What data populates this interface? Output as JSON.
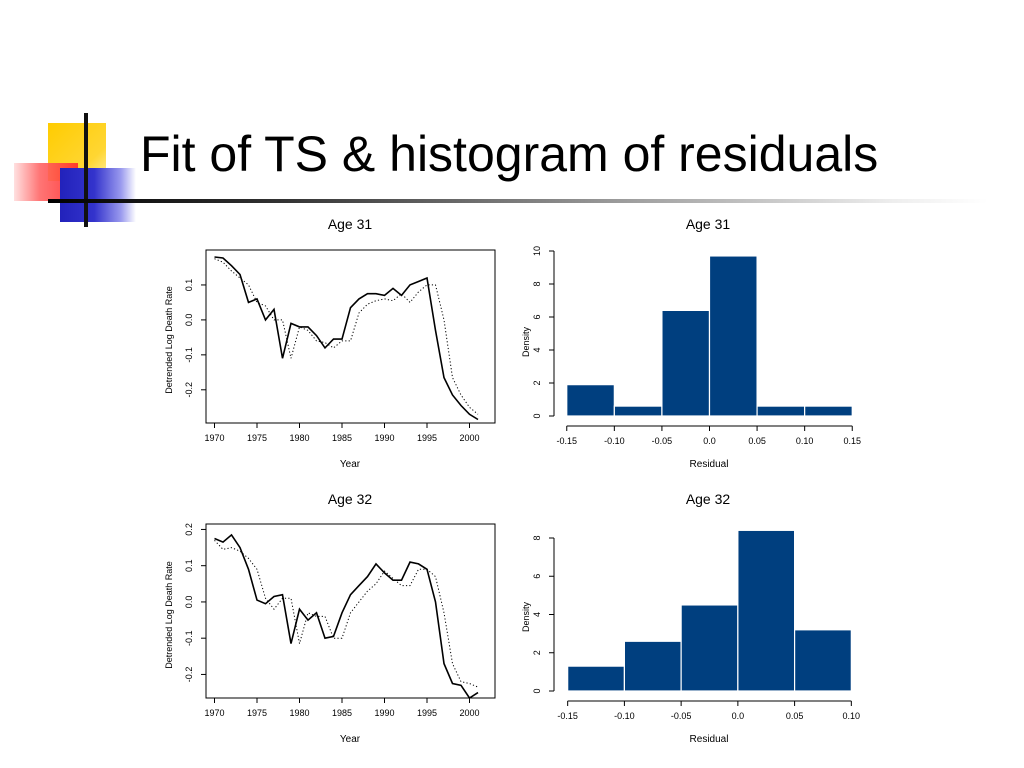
{
  "slide": {
    "title": "Fit of TS & histogram of residuals"
  },
  "colors": {
    "bar_fill": "#003f7f",
    "bar_edge": "#ffffff",
    "deco_yellow": "#ffcc00",
    "deco_red": "#ff3333",
    "deco_blue": "#3333cc"
  },
  "chart_data": [
    {
      "type": "line",
      "title": "Age 31",
      "xlabel": "Year",
      "ylabel": "Detrended Log Death Rate",
      "xlim": [
        1969,
        2003
      ],
      "ylim": [
        -0.295,
        0.2
      ],
      "xticks": [
        1970,
        1975,
        1980,
        1985,
        1990,
        1995,
        2000
      ],
      "xtick_labels": [
        "1970",
        "1975",
        "1980",
        "1985",
        "1990",
        "1995",
        "2000"
      ],
      "yticks": [
        -0.2,
        -0.1,
        0.0,
        0.1
      ],
      "ytick_labels": [
        "-0.2",
        "-0.1",
        "0.0",
        "0.1"
      ],
      "x": [
        1970,
        1971,
        1972,
        1973,
        1974,
        1975,
        1976,
        1977,
        1978,
        1979,
        1980,
        1981,
        1982,
        1983,
        1984,
        1985,
        1986,
        1987,
        1988,
        1989,
        1990,
        1991,
        1992,
        1993,
        1994,
        1995,
        1996,
        1997,
        1998,
        1999,
        2000,
        2001
      ],
      "series": [
        {
          "style": "solid",
          "values": [
            0.18,
            0.177,
            0.155,
            0.13,
            0.05,
            0.06,
            0.0,
            0.03,
            -0.11,
            -0.01,
            -0.02,
            -0.02,
            -0.045,
            -0.08,
            -0.055,
            -0.055,
            0.035,
            0.06,
            0.075,
            0.075,
            0.07,
            0.09,
            0.07,
            0.1,
            0.11,
            0.12,
            -0.03,
            -0.165,
            -0.215,
            -0.245,
            -0.27,
            -0.285
          ]
        },
        {
          "style": "dotted",
          "values": [
            0.175,
            0.165,
            0.14,
            0.12,
            0.1,
            0.05,
            0.04,
            0.0,
            0.0,
            -0.11,
            -0.02,
            -0.03,
            -0.06,
            -0.065,
            -0.08,
            -0.06,
            -0.06,
            0.02,
            0.045,
            0.055,
            0.06,
            0.055,
            0.075,
            0.05,
            0.08,
            0.1,
            0.1,
            0.0,
            -0.165,
            -0.215,
            -0.25,
            -0.27
          ]
        }
      ]
    },
    {
      "type": "bar",
      "title": "Age 31",
      "xlabel": "Residual",
      "ylabel": "Density",
      "xlim": [
        -0.155,
        0.155
      ],
      "ylim": [
        0,
        10
      ],
      "xticks": [
        -0.15,
        -0.1,
        -0.05,
        0.0,
        0.05,
        0.1,
        0.15
      ],
      "xtick_labels": [
        "-0.15",
        "-0.10",
        "-0.05",
        "0.0",
        "0.05",
        "0.10",
        "0.15"
      ],
      "yticks": [
        0,
        2,
        4,
        6,
        8,
        10
      ],
      "ytick_labels": [
        "0",
        "2",
        "4",
        "6",
        "8",
        "10"
      ],
      "bin_edges": [
        -0.15,
        -0.1,
        -0.05,
        0.0,
        0.05,
        0.1,
        0.15
      ],
      "values": [
        1.9,
        0.6,
        6.4,
        9.7,
        0.6,
        0.6
      ]
    },
    {
      "type": "line",
      "title": "Age 32",
      "xlabel": "Year",
      "ylabel": "Detrended Log Death Rate",
      "xlim": [
        1969,
        2003
      ],
      "ylim": [
        -0.265,
        0.215
      ],
      "xticks": [
        1970,
        1975,
        1980,
        1985,
        1990,
        1995,
        2000
      ],
      "xtick_labels": [
        "1970",
        "1975",
        "1980",
        "1985",
        "1990",
        "1995",
        "2000"
      ],
      "yticks": [
        -0.2,
        -0.1,
        0.0,
        0.1,
        0.2
      ],
      "ytick_labels": [
        "-0.2",
        "-0.1",
        "0.0",
        "0.1",
        "0.2"
      ],
      "x": [
        1970,
        1971,
        1972,
        1973,
        1974,
        1975,
        1976,
        1977,
        1978,
        1979,
        1980,
        1981,
        1982,
        1983,
        1984,
        1985,
        1986,
        1987,
        1988,
        1989,
        1990,
        1991,
        1992,
        1993,
        1994,
        1995,
        1996,
        1997,
        1998,
        1999,
        2000,
        2001
      ],
      "series": [
        {
          "style": "solid",
          "values": [
            0.175,
            0.165,
            0.185,
            0.15,
            0.09,
            0.005,
            -0.005,
            0.015,
            0.02,
            -0.115,
            -0.02,
            -0.05,
            -0.03,
            -0.1,
            -0.095,
            -0.03,
            0.02,
            0.045,
            0.07,
            0.105,
            0.08,
            0.06,
            0.06,
            0.11,
            0.105,
            0.09,
            0.0,
            -0.17,
            -0.225,
            -0.23,
            -0.265,
            -0.25
          ]
        },
        {
          "style": "dotted",
          "values": [
            0.17,
            0.145,
            0.15,
            0.14,
            0.12,
            0.09,
            0.01,
            -0.02,
            0.01,
            0.01,
            -0.115,
            -0.03,
            -0.04,
            -0.04,
            -0.1,
            -0.1,
            -0.03,
            0.0,
            0.03,
            0.05,
            0.085,
            0.065,
            0.045,
            0.045,
            0.09,
            0.09,
            0.07,
            -0.03,
            -0.17,
            -0.22,
            -0.225,
            -0.235
          ]
        }
      ]
    },
    {
      "type": "bar",
      "title": "Age 32",
      "xlabel": "Residual",
      "ylabel": "Density",
      "xlim": [
        -0.155,
        0.105
      ],
      "ylim": [
        0,
        8
      ],
      "xticks": [
        -0.15,
        -0.1,
        -0.05,
        0.0,
        0.05,
        0.1
      ],
      "xtick_labels": [
        "-0.15",
        "-0.10",
        "-0.05",
        "0.0",
        "0.05",
        "0.10"
      ],
      "yticks": [
        0,
        2,
        4,
        6,
        8
      ],
      "ytick_labels": [
        "0",
        "2",
        "4",
        "6",
        "8"
      ],
      "bin_edges": [
        -0.15,
        -0.1,
        -0.05,
        0.0,
        0.05,
        0.1
      ],
      "values": [
        1.3,
        2.6,
        4.5,
        8.4,
        3.2
      ]
    }
  ]
}
